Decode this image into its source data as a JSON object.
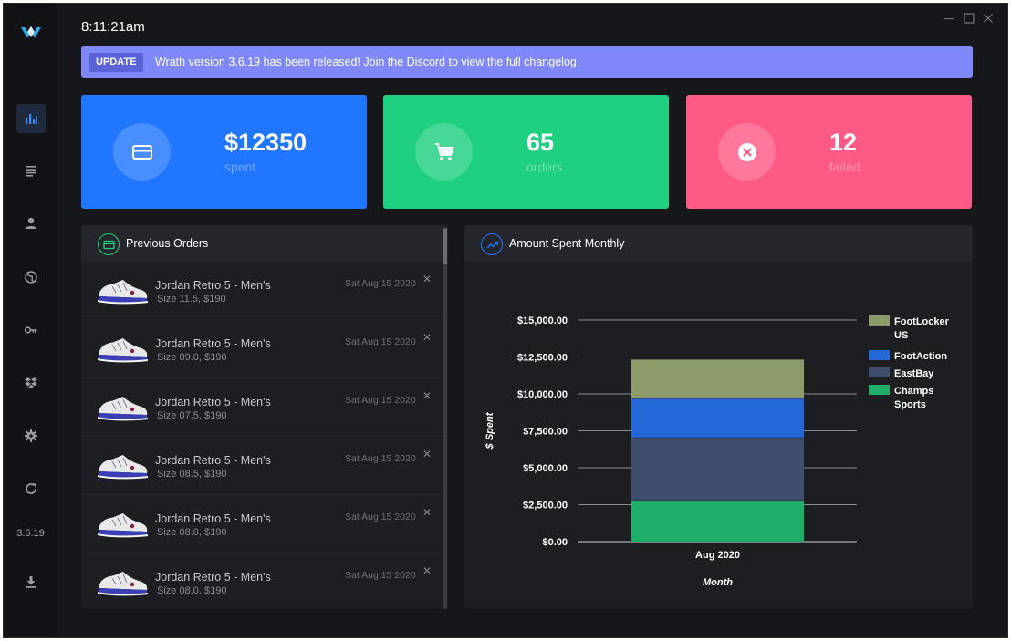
{
  "app": {
    "version": "3.6.19",
    "clock": "8:11:21am"
  },
  "sidebar": {
    "items": [
      {
        "name": "dashboard",
        "icon": "bar-chart-icon",
        "active": true
      },
      {
        "name": "tasks",
        "icon": "list-icon",
        "active": false
      },
      {
        "name": "profiles",
        "icon": "user-icon",
        "active": false
      },
      {
        "name": "proxies",
        "icon": "globe-icon",
        "active": false
      },
      {
        "name": "accounts",
        "icon": "key-icon",
        "active": false
      },
      {
        "name": "integrations",
        "icon": "dropbox-icon",
        "active": false
      },
      {
        "name": "settings",
        "icon": "gear-icon",
        "active": false
      },
      {
        "name": "refresh",
        "icon": "refresh-icon",
        "active": false
      },
      {
        "name": "download",
        "icon": "download-icon",
        "active": false
      }
    ]
  },
  "banner": {
    "tag": "UPDATE",
    "text": "Wrath version 3.6.19 has been released! Join the Discord to view the full changelog.",
    "color": "#7f88f8"
  },
  "stats": [
    {
      "value": "$12350",
      "label": "spent",
      "icon": "credit-card-icon",
      "color": "#2176ff"
    },
    {
      "value": "65",
      "label": "orders",
      "icon": "cart-icon",
      "color": "#1ed07f"
    },
    {
      "value": "12",
      "label": "failed",
      "icon": "x-circle-icon",
      "color": "#ff5a86"
    }
  ],
  "orders": {
    "title": "Previous Orders",
    "items": [
      {
        "name": "Jordan Retro 5 - Men's",
        "details": "Size 11.5, $190",
        "date": "Sat Aug 15 2020"
      },
      {
        "name": "Jordan Retro 5 - Men's",
        "details": "Size 09.0, $190",
        "date": "Sat Aug 15 2020"
      },
      {
        "name": "Jordan Retro 5 - Men's",
        "details": "Size 07.5, $190",
        "date": "Sat Aug 15 2020"
      },
      {
        "name": "Jordan Retro 5 - Men's",
        "details": "Size 08.5, $190",
        "date": "Sat Aug 15 2020"
      },
      {
        "name": "Jordan Retro 5 - Men's",
        "details": "Size 08.0, $190",
        "date": "Sat Aug 15 2020"
      },
      {
        "name": "Jordan Retro 5 - Men's",
        "details": "Size 08.0, $190",
        "date": "Sat Aug 15 2020"
      }
    ]
  },
  "chart_panel": {
    "title": "Amount Spent Monthly"
  },
  "chart_data": {
    "type": "bar",
    "stacked": true,
    "categories": [
      "Aug 2020"
    ],
    "series": [
      {
        "name": "Champs Sports",
        "values": [
          2800
        ],
        "color": "#1eae6a"
      },
      {
        "name": "EastBay",
        "values": [
          4250
        ],
        "color": "#3f4e6a"
      },
      {
        "name": "FootAction",
        "values": [
          2650
        ],
        "color": "#2468d8"
      },
      {
        "name": "FootLocker US",
        "values": [
          2650
        ],
        "color": "#8d9b6a"
      }
    ],
    "legend_order": [
      "FootLocker US",
      "FootAction",
      "EastBay",
      "Champs Sports"
    ],
    "xlabel": "Month",
    "ylabel": "$ Spent",
    "ylim": [
      0,
      15000
    ],
    "yticks": [
      {
        "value": 0,
        "label": "$0.00"
      },
      {
        "value": 2500,
        "label": "$2,500.00"
      },
      {
        "value": 5000,
        "label": "$5,000.00"
      },
      {
        "value": 7500,
        "label": "$7,500.00"
      },
      {
        "value": 10000,
        "label": "$10,000.00"
      },
      {
        "value": 12500,
        "label": "$12,500.00"
      },
      {
        "value": 15000,
        "label": "$15,000.00"
      }
    ],
    "grid": true,
    "legend": "right"
  }
}
